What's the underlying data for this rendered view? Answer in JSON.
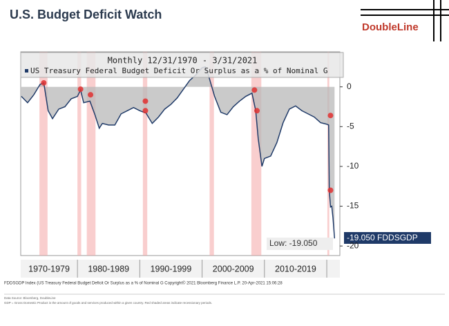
{
  "chart_data": {
    "type": "area-line",
    "title": "U.S. Budget Deficit Watch",
    "logo": "DoubleLine",
    "legend_header": "Monthly 12/31/1970 - 3/31/2021",
    "series": [
      {
        "name": "US Treasury Federal Budget Deficit Or Surplus as a % of Nominal G",
        "color": "#1f3a68",
        "x": [
          1971,
          1972,
          1973,
          1974,
          1974.6,
          1975.3,
          1976,
          1977,
          1978,
          1979,
          1980,
          1980.5,
          1981,
          1982,
          1982.8,
          1983.5,
          1984,
          1985,
          1986,
          1987,
          1988,
          1989,
          1990,
          1991,
          1992,
          1993,
          1994,
          1995,
          1996,
          1997,
          1998,
          1999,
          2000,
          2000.5,
          2001,
          2002,
          2003,
          2004,
          2005,
          2006,
          2007,
          2008,
          2008.6,
          2009,
          2009.6,
          2010,
          2011,
          2012,
          2013,
          2014,
          2015,
          2016,
          2017,
          2018,
          2019,
          2020,
          2020.3,
          2020.4,
          2020.6,
          2020.8,
          2021,
          2021.25
        ],
        "values": [
          -1.2,
          -2.0,
          -1.0,
          0.3,
          0.5,
          -3.0,
          -4.0,
          -2.8,
          -2.5,
          -1.5,
          -1.2,
          -0.4,
          -2.0,
          -1.8,
          -3.5,
          -5.2,
          -4.6,
          -4.8,
          -4.8,
          -3.4,
          -3.0,
          -2.6,
          -3.0,
          -3.3,
          -4.6,
          -3.8,
          -2.8,
          -2.2,
          -1.4,
          -0.3,
          0.8,
          1.5,
          2.4,
          2.5,
          1.5,
          -1.2,
          -3.2,
          -3.5,
          -2.5,
          -1.8,
          -1.2,
          -0.8,
          -3.0,
          -6.5,
          -10.0,
          -9.0,
          -8.7,
          -7.0,
          -4.5,
          -2.8,
          -2.4,
          -3.0,
          -3.4,
          -3.8,
          -4.5,
          -4.7,
          -4.8,
          -13.0,
          -15.1,
          -15.0,
          -16.5,
          -19.05
        ]
      }
    ],
    "markers": {
      "color": "#e03030",
      "x": [
        1974.6,
        1980.5,
        1982.1,
        1990.9,
        1990.9,
        2008.4,
        2008.8,
        2020.6,
        2020.6
      ],
      "values": [
        0.5,
        -0.3,
        -1.0,
        -1.8,
        -3.0,
        -0.4,
        -3.0,
        -3.6,
        -13.0
      ]
    },
    "recessions": [
      [
        1973.9,
        1975.2
      ],
      [
        1980.0,
        1980.6
      ],
      [
        1981.5,
        1982.9
      ],
      [
        1990.5,
        1991.2
      ],
      [
        2001.2,
        2001.9
      ],
      [
        2007.9,
        2009.5
      ],
      [
        2020.1,
        2020.4
      ]
    ],
    "xlim": [
      1970.9,
      2022.1
    ],
    "xticks": [
      {
        "value": 1970,
        "label": "1970-1979"
      },
      {
        "value": 1980,
        "label": "1980-1989"
      },
      {
        "value": 1990,
        "label": "1990-1999"
      },
      {
        "value": 2000,
        "label": "2000-2009"
      },
      {
        "value": 2010,
        "label": "2010-2019"
      },
      {
        "value": 2020,
        "label": null
      }
    ],
    "ylim": [
      -21.2,
      4.4
    ],
    "yticks": [
      0,
      -5,
      -10,
      -15,
      -20
    ],
    "low_label": "Low: -19.050",
    "last_label": "-19.050 FDDSGDP",
    "footer": "FDDSGDP Index (US Treasury Federal Budget Deficit Or Surplus as a % of Nominal G     Copyright© 2021 Bloomberg Finance L.P.     20-Apr-2021 15:06:28",
    "source": "Data Source: Bloomberg, DoubleLine",
    "note": "GDP = Gross Domestic Product is the amount of goods and services produced within a given country. Red shaded areas indicate recessionary periods."
  }
}
